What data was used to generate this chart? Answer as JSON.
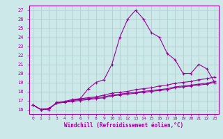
{
  "xlabel": "Windchill (Refroidissement éolien,°C)",
  "x_values": [
    0,
    1,
    2,
    3,
    4,
    5,
    6,
    7,
    8,
    9,
    10,
    11,
    12,
    13,
    14,
    15,
    16,
    17,
    18,
    19,
    20,
    21,
    22,
    23
  ],
  "line1_y": [
    16.5,
    16.0,
    16.0,
    16.8,
    16.8,
    17.0,
    17.2,
    18.3,
    19.0,
    19.3,
    21.0,
    24.0,
    26.0,
    27.0,
    26.0,
    24.5,
    24.0,
    22.2,
    21.5,
    20.0,
    20.0,
    21.0,
    20.5,
    19.0
  ],
  "line2_y": [
    16.5,
    16.0,
    16.1,
    16.7,
    16.8,
    16.9,
    17.0,
    17.1,
    17.2,
    17.3,
    17.5,
    17.6,
    17.7,
    17.8,
    17.9,
    18.0,
    18.1,
    18.2,
    18.4,
    18.5,
    18.6,
    18.7,
    18.8,
    19.0
  ],
  "line3_y": [
    16.5,
    16.0,
    16.1,
    16.7,
    16.8,
    17.0,
    17.1,
    17.2,
    17.3,
    17.4,
    17.6,
    17.7,
    17.8,
    17.9,
    18.0,
    18.1,
    18.2,
    18.3,
    18.5,
    18.6,
    18.7,
    18.8,
    18.9,
    19.1
  ],
  "line4_y": [
    16.5,
    16.0,
    16.1,
    16.7,
    16.9,
    17.1,
    17.2,
    17.3,
    17.4,
    17.6,
    17.8,
    17.9,
    18.0,
    18.2,
    18.3,
    18.4,
    18.6,
    18.7,
    18.9,
    19.0,
    19.1,
    19.3,
    19.4,
    19.6
  ],
  "line_color": "#990099",
  "bg_color": "#cce8e8",
  "grid_color": "#aacccc",
  "ylim": [
    15.5,
    27.5
  ],
  "yticks": [
    16,
    17,
    18,
    19,
    20,
    21,
    22,
    23,
    24,
    25,
    26,
    27
  ],
  "xlim": [
    -0.5,
    23.5
  ],
  "xtick_labels": [
    "0",
    "1",
    "2",
    "3",
    "4",
    "5",
    "6",
    "7",
    "8",
    "9",
    "10",
    "11",
    "12",
    "13",
    "14",
    "15",
    "16",
    "17",
    "18",
    "19",
    "20",
    "21",
    "22",
    "23"
  ],
  "marker": "+"
}
